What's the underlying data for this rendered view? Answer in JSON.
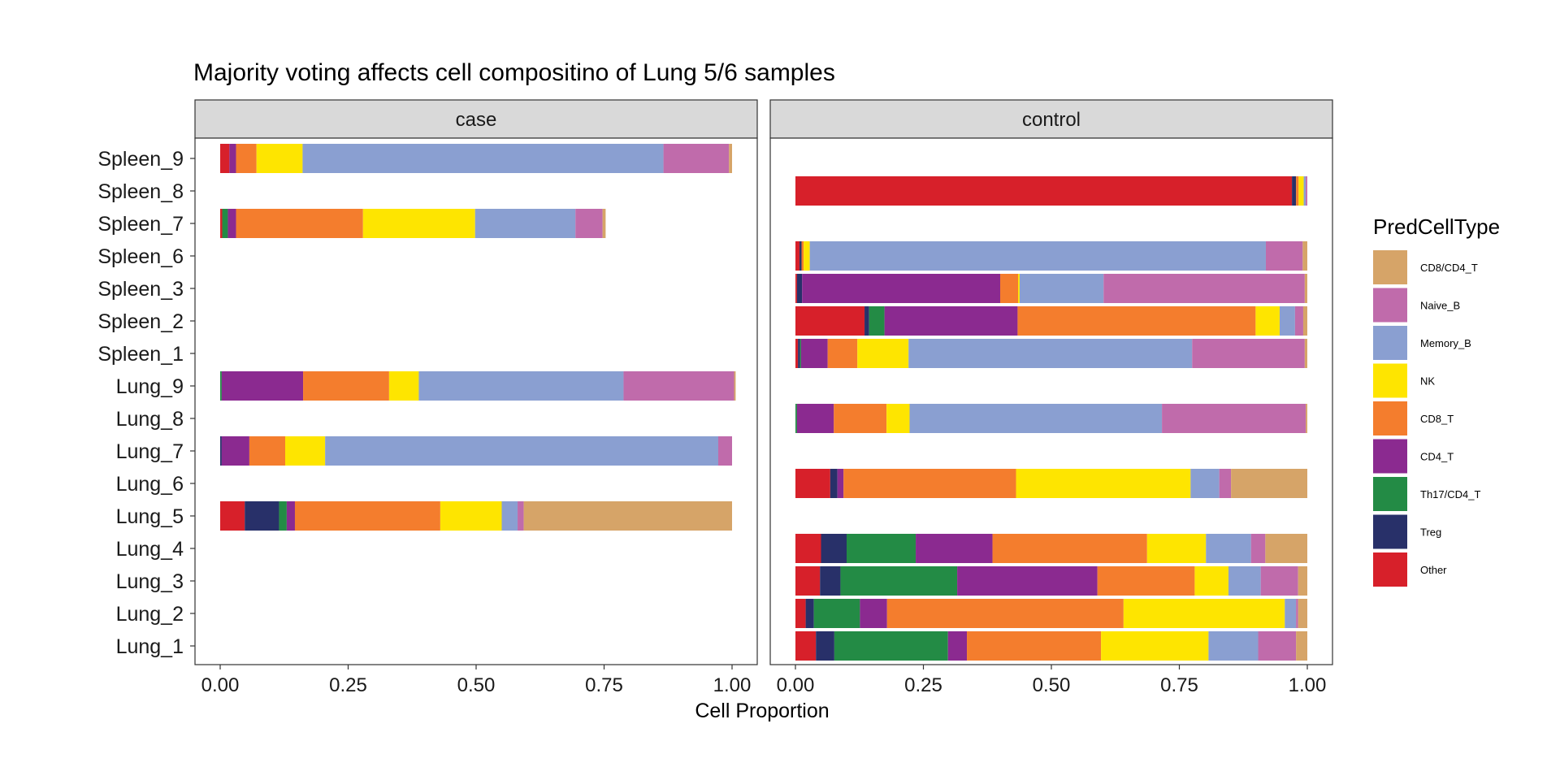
{
  "chart_data": {
    "type": "bar",
    "orientation": "horizontal",
    "stacked": true,
    "title": "Majority voting affects cell compositino of Lung 5/6 samples",
    "xlabel": "Cell Proportion",
    "ylabel": "",
    "xlim": [
      0,
      1
    ],
    "x_ticks": [
      "0.00",
      "0.25",
      "0.50",
      "0.75",
      "1.00"
    ],
    "categories": [
      "Spleen_9",
      "Spleen_8",
      "Spleen_7",
      "Spleen_6",
      "Spleen_3",
      "Spleen_2",
      "Spleen_1",
      "Lung_9",
      "Lung_8",
      "Lung_7",
      "Lung_6",
      "Lung_5",
      "Lung_4",
      "Lung_3",
      "Lung_2",
      "Lung_1"
    ],
    "stack_order": [
      "Other",
      "Treg",
      "Th17/CD4_T",
      "CD4_T",
      "CD8_T",
      "NK",
      "Memory_B",
      "Naive_B",
      "CD8/CD4_T"
    ],
    "legend": {
      "title": "PredCellType",
      "position": "right",
      "items": [
        {
          "name": "CD8/CD4_T",
          "color": "#D6A468"
        },
        {
          "name": "Naive_B",
          "color": "#C06BAB"
        },
        {
          "name": "Memory_B",
          "color": "#8A9FD1"
        },
        {
          "name": "NK",
          "color": "#FEE500"
        },
        {
          "name": "CD8_T",
          "color": "#F47D2D"
        },
        {
          "name": "CD4_T",
          "color": "#8B2A90"
        },
        {
          "name": "Th17/CD4_T",
          "color": "#238B45"
        },
        {
          "name": "Treg",
          "color": "#283069"
        },
        {
          "name": "Other",
          "color": "#D7202A"
        }
      ]
    },
    "facets": [
      {
        "name": "case",
        "rows": [
          {
            "sample": "Spleen_9",
            "values": [
              0.018,
              0.0,
              0.0,
              0.013,
              0.04,
              0.09,
              0.705,
              0.128,
              0.006
            ]
          },
          {
            "sample": "Lung_5",
            "values": [
              0.048,
              0.067,
              0.015,
              0.016,
              0.284,
              0.12,
              0.031,
              0.012,
              0.407
            ]
          },
          {
            "sample": "Spleen_7",
            "values": [
              0.004,
              0.0,
              0.011,
              0.016,
              0.248,
              0.219,
              0.196,
              0.053,
              0.006
            ]
          },
          {
            "sample": "Lung_9",
            "values": [
              0.0,
              0.0,
              0.003,
              0.159,
              0.168,
              0.058,
              0.4,
              0.216,
              0.003
            ]
          },
          {
            "sample": "Lung_7",
            "values": [
              0.0,
              0.003,
              0.0,
              0.054,
              0.07,
              0.078,
              0.768,
              0.027,
              0.0
            ]
          }
        ]
      },
      {
        "name": "control",
        "rows": [
          {
            "sample": "Spleen_8",
            "values": [
              0.97,
              0.008,
              0.0,
              0.0,
              0.005,
              0.01,
              0.004,
              0.003,
              0.0
            ]
          },
          {
            "sample": "Spleen_6",
            "values": [
              0.008,
              0.004,
              0.0,
              0.0,
              0.004,
              0.012,
              0.891,
              0.072,
              0.009
            ]
          },
          {
            "sample": "Spleen_3",
            "values": [
              0.003,
              0.01,
              0.0,
              0.387,
              0.035,
              0.003,
              0.164,
              0.393,
              0.005
            ]
          },
          {
            "sample": "Spleen_2",
            "values": [
              0.135,
              0.009,
              0.03,
              0.26,
              0.465,
              0.047,
              0.03,
              0.016,
              0.008
            ]
          },
          {
            "sample": "Spleen_1",
            "values": [
              0.005,
              0.004,
              0.002,
              0.052,
              0.058,
              0.1,
              0.554,
              0.22,
              0.005
            ]
          },
          {
            "sample": "Lung_8",
            "values": [
              0.0,
              0.0,
              0.003,
              0.072,
              0.103,
              0.045,
              0.493,
              0.281,
              0.003
            ]
          },
          {
            "sample": "Lung_6",
            "values": [
              0.068,
              0.014,
              0.0,
              0.012,
              0.337,
              0.341,
              0.056,
              0.023,
              0.149
            ]
          },
          {
            "sample": "Lung_4",
            "values": [
              0.05,
              0.05,
              0.135,
              0.15,
              0.302,
              0.115,
              0.088,
              0.028,
              0.082
            ]
          },
          {
            "sample": "Lung_3",
            "values": [
              0.048,
              0.04,
              0.228,
              0.274,
              0.19,
              0.066,
              0.063,
              0.073,
              0.018
            ]
          },
          {
            "sample": "Lung_2",
            "values": [
              0.02,
              0.016,
              0.09,
              0.053,
              0.462,
              0.315,
              0.022,
              0.004,
              0.018
            ]
          },
          {
            "sample": "Lung_1",
            "values": [
              0.04,
              0.036,
              0.222,
              0.037,
              0.262,
              0.21,
              0.097,
              0.074,
              0.022
            ]
          }
        ]
      }
    ]
  }
}
